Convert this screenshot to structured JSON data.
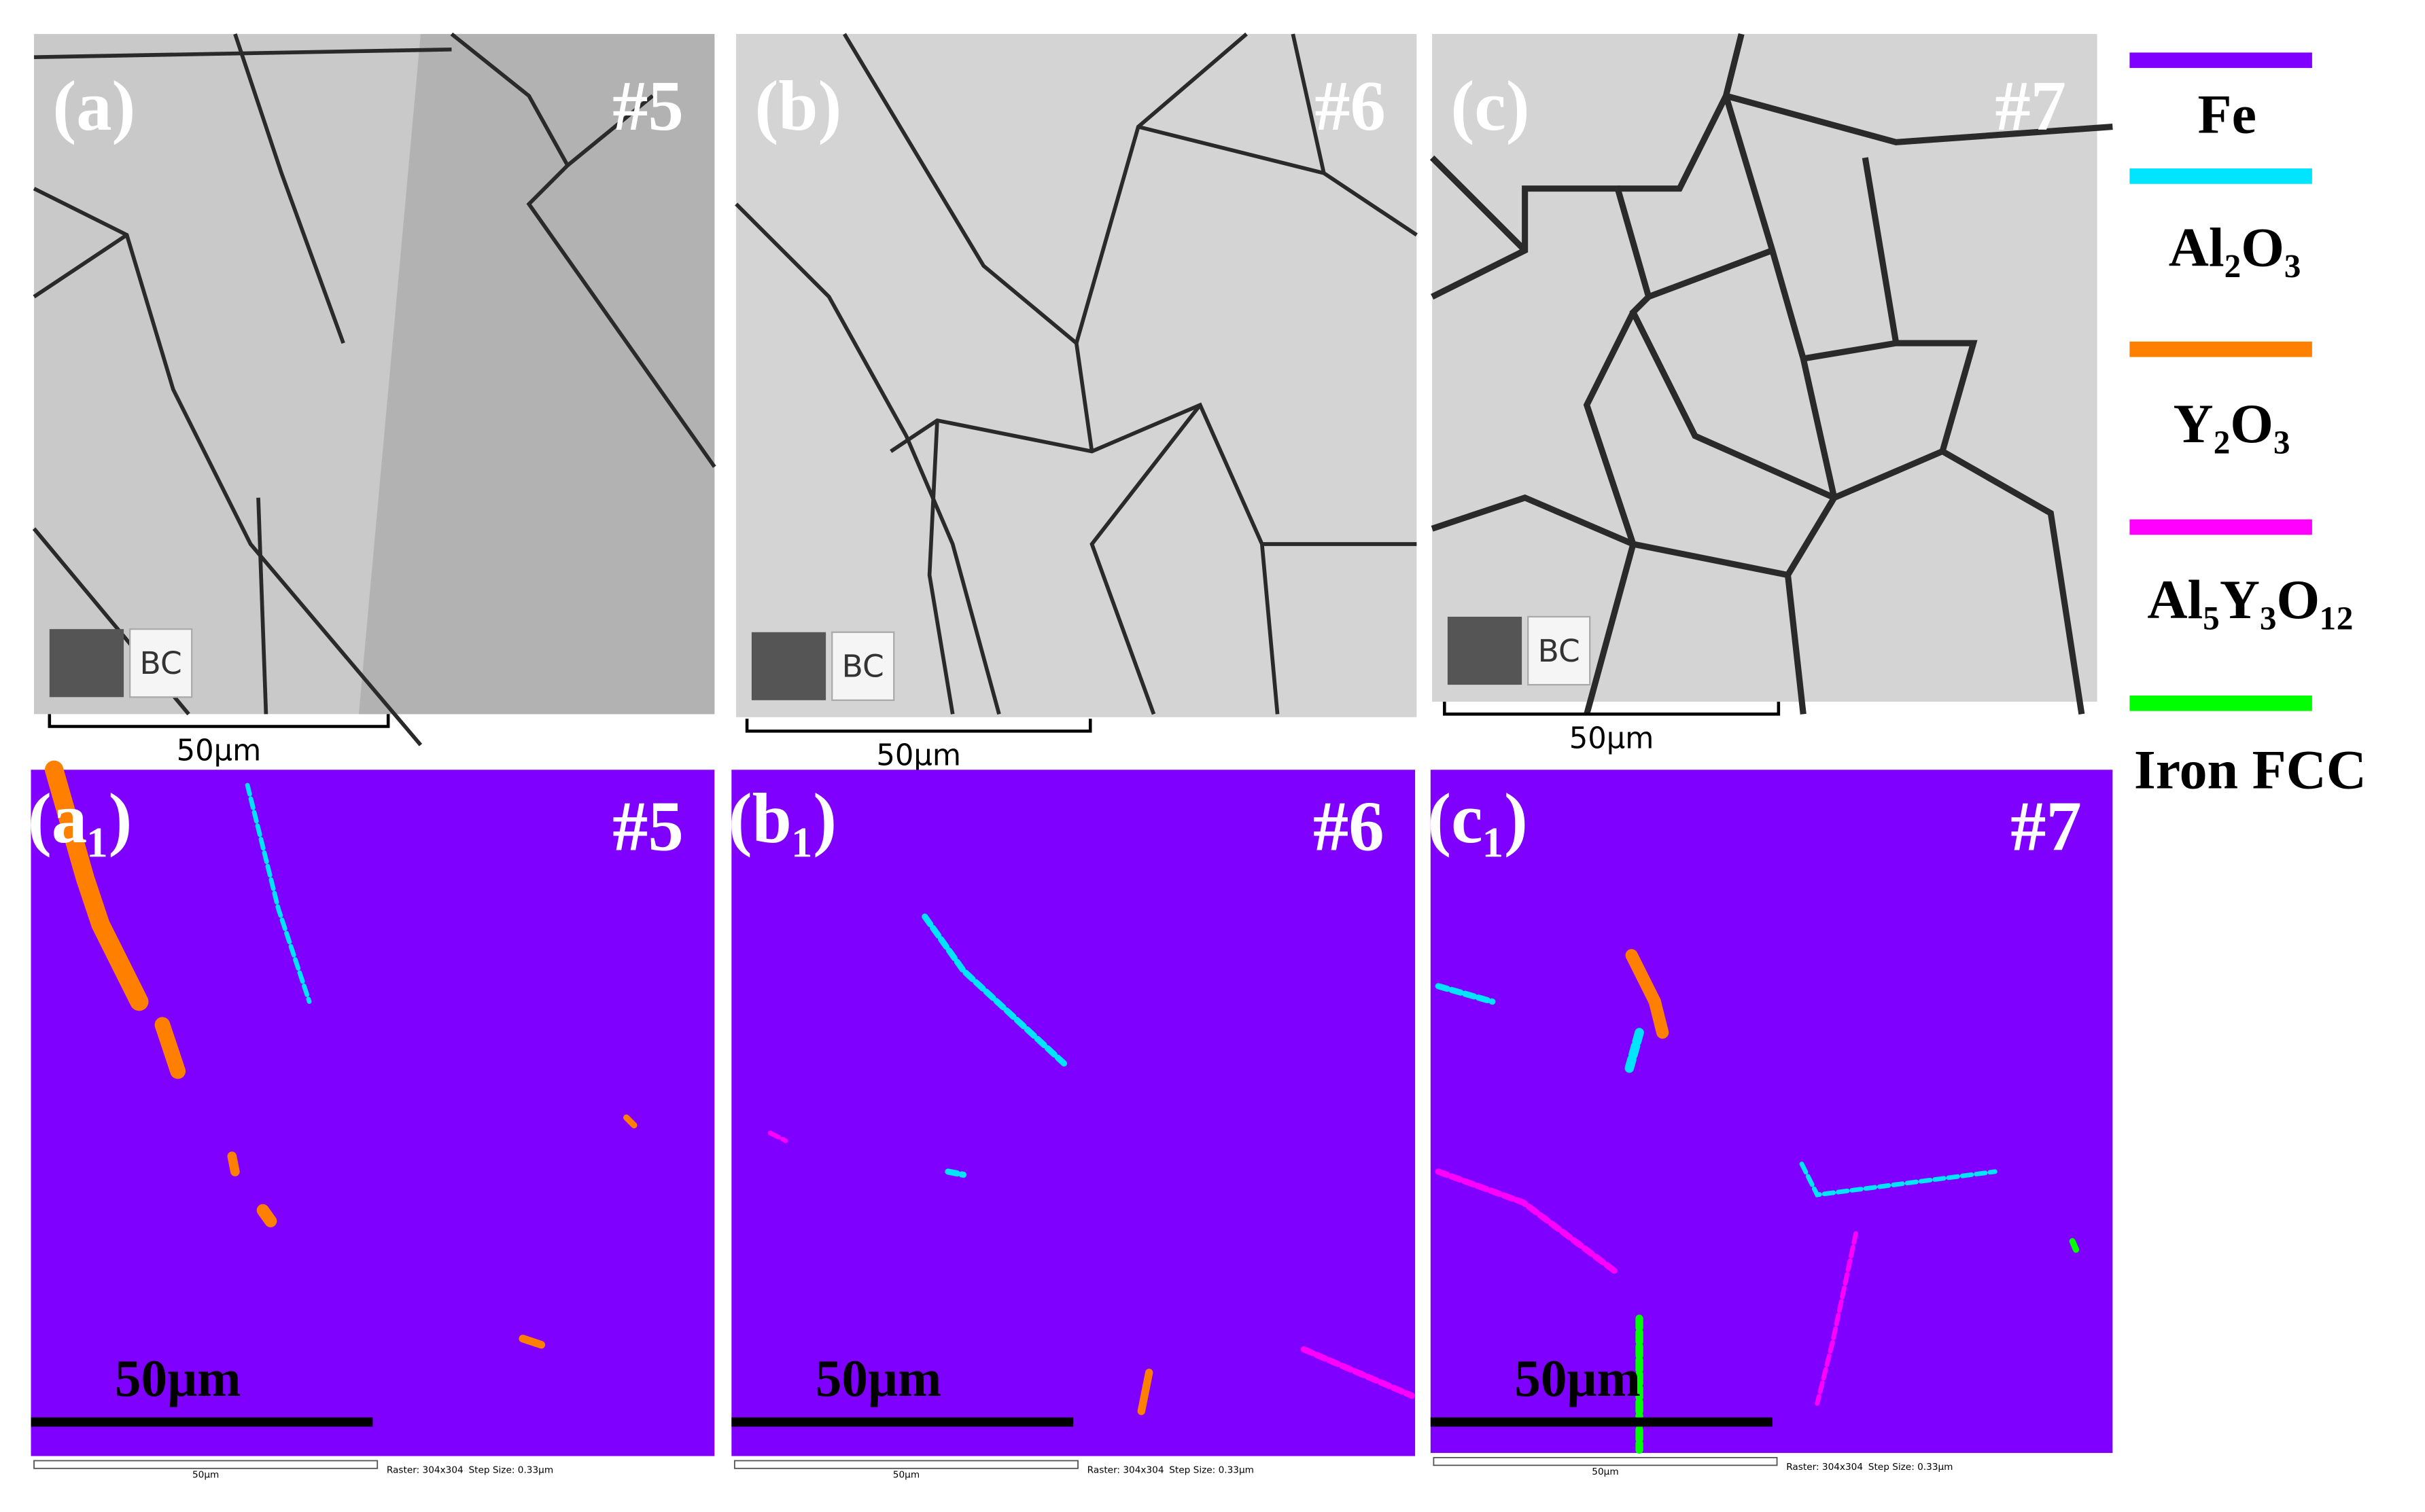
{
  "panels": [
    {
      "label": "(a)",
      "sample": "#5",
      "scale_bar": "50μm",
      "mode": "BC"
    },
    {
      "label": "(b)",
      "sample": "#6",
      "scale_bar": "50μm",
      "mode": "BC"
    },
    {
      "label": "(c)",
      "sample": "#7",
      "scale_bar": "50μm",
      "mode": "BC"
    }
  ],
  "phase_maps": [
    {
      "label": "(a₁)",
      "sample": "#5",
      "scale_bar": "50μm",
      "footer_scale": "50μm",
      "raster": "Raster: 304x304",
      "step": "Step Size: 0.33μm"
    },
    {
      "label": "(b₁)",
      "sample": "#6",
      "scale_bar": "50μm",
      "footer_scale": "50μm",
      "raster": "Raster: 304x304",
      "step": "Step Size: 0.33μm"
    },
    {
      "label": "(c₁)",
      "sample": "#7",
      "scale_bar": "50μm",
      "footer_scale": "50μm",
      "raster": "Raster: 304x304",
      "step": "Step Size: 0.33μm"
    }
  ],
  "legend": [
    {
      "name": "Fe",
      "color": "#8000ff"
    },
    {
      "name": "Al₂O₃",
      "color": "#00e5ff"
    },
    {
      "name": "Y₂O₃",
      "color": "#ff8000"
    },
    {
      "name": "Al₅Y₃O₁₂",
      "color": "#ff00ff"
    },
    {
      "name": "Iron FCC",
      "color": "#00ff00"
    }
  ]
}
